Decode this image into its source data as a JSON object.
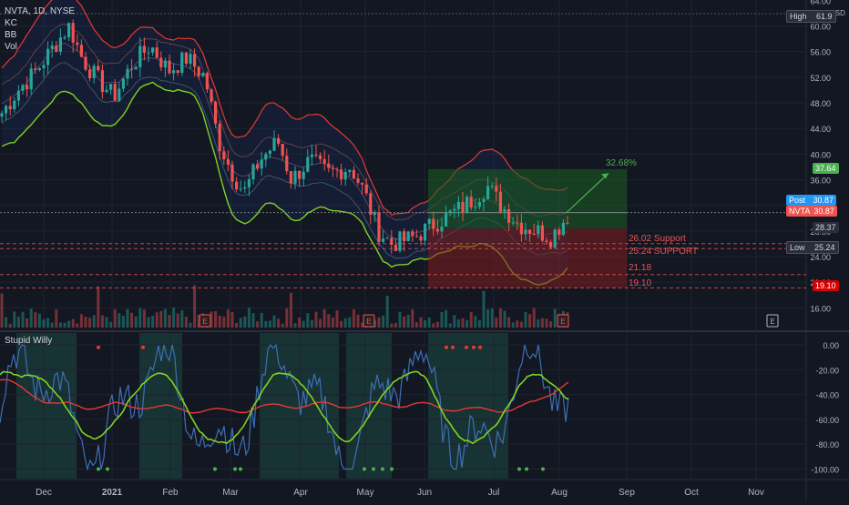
{
  "symbol_legend": {
    "title": "NVTA, 1D, NYSE",
    "ind1": "KC",
    "ind2": "BB",
    "ind3": "Vol"
  },
  "oscillator": {
    "name": "Stupid Willy"
  },
  "price_axis": {
    "currency": "USD",
    "ticks": [
      "64.00",
      "60.00",
      "56.00",
      "52.00",
      "48.00",
      "44.00",
      "40.00",
      "36.00",
      "32.00",
      "28.00",
      "24.00",
      "20.00",
      "16.00"
    ]
  },
  "osc_axis": {
    "ticks": [
      "0.00",
      "-20.00",
      "-40.00",
      "-60.00",
      "-80.00",
      "-100.00"
    ]
  },
  "time_axis": {
    "ticks": [
      "Dec",
      "2021",
      "Feb",
      "Mar",
      "Apr",
      "May",
      "Jun",
      "Jul",
      "Aug",
      "Sep",
      "Oct",
      "Nov"
    ]
  },
  "badges": {
    "high_label": "High",
    "high_value": "61.9",
    "target_value": "37.64",
    "post_label": "Post",
    "post_value": "30.87",
    "last_label": "NVTA",
    "last_value": "30.87",
    "entry_value": "28.37",
    "low_label": "Low",
    "low_value": "25.24",
    "stop_value": "19.10"
  },
  "levels": {
    "support1": "26.02 Support",
    "support2": "25.24 SUPPORT",
    "level3": "21.18",
    "level4": "19.10"
  },
  "projection": {
    "percent": "32.68%"
  },
  "earnings_marker": "E",
  "colors": {
    "up": "#26a69a",
    "down": "#ef5350",
    "bg": "#131722",
    "green_line": "#7ed321",
    "red_line": "#e53935",
    "osc_blue": "#3d6fb6"
  }
}
